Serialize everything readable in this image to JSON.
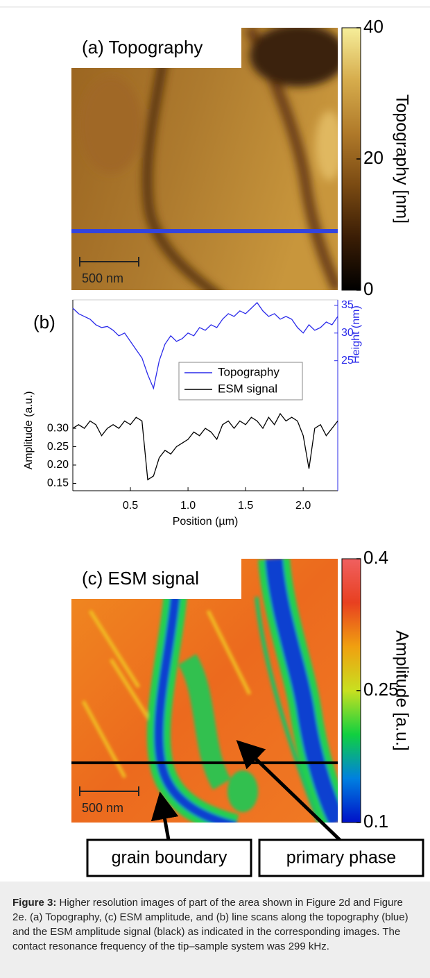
{
  "chart_data": [
    {
      "type": "image",
      "panel_label": "(a) Topography",
      "scale_bar": "500 nm",
      "colorbar": {
        "label": "Topography [nm]",
        "colormap": [
          "#000000",
          "#3a1d05",
          "#7a4a12",
          "#b07a2a",
          "#d6ac4c",
          "#f6ee9a"
        ],
        "clim": [
          0,
          40
        ],
        "ticks": [
          0,
          20,
          40
        ]
      }
    },
    {
      "type": "line",
      "panel_label": "(b)",
      "x": [
        0,
        0.05,
        0.1,
        0.15,
        0.2,
        0.25,
        0.3,
        0.35,
        0.4,
        0.45,
        0.5,
        0.55,
        0.6,
        0.65,
        0.7,
        0.75,
        0.8,
        0.85,
        0.9,
        0.95,
        1.0,
        1.05,
        1.1,
        1.15,
        1.2,
        1.25,
        1.3,
        1.35,
        1.4,
        1.45,
        1.5,
        1.55,
        1.6,
        1.65,
        1.7,
        1.75,
        1.8,
        1.85,
        1.9,
        1.95,
        2.0,
        2.05,
        2.1,
        2.15,
        2.2,
        2.25,
        2.3
      ],
      "xlim": [
        0,
        2.3
      ],
      "xticks": [
        0.5,
        {
          "value": 1,
          "label": "1.0"
        },
        1.5,
        {
          "value": 2,
          "label": "2.0"
        }
      ],
      "xlabel": "Position (µm)",
      "ylabel": "Amplitude (a.u.)",
      "y2label": "Height (nm)",
      "ylim": [
        0.13,
        0.65
      ],
      "yticks": [
        0.15,
        {
          "value": 0.2,
          "label": "0.20"
        },
        0.25,
        {
          "value": 0.3,
          "label": "0.30"
        }
      ],
      "y2lim": [
        1.5,
        36
      ],
      "y2ticks": [
        25,
        30,
        35
      ],
      "legend": "center",
      "series": [
        {
          "name": "Topography",
          "color": "#2b2bea",
          "axis": "y2",
          "values": [
            34.5,
            33.5,
            33.0,
            32.5,
            31.5,
            31.0,
            31.2,
            30.5,
            29.5,
            30.0,
            28.5,
            27.0,
            25.5,
            22.5,
            20.0,
            25.0,
            28.0,
            29.5,
            28.5,
            29.0,
            30.0,
            29.5,
            31.0,
            30.5,
            31.5,
            31.0,
            32.5,
            33.5,
            33.0,
            34.0,
            33.5,
            34.5,
            35.5,
            34.0,
            33.0,
            33.5,
            32.5,
            33.0,
            32.5,
            31.0,
            30.0,
            31.5,
            30.5,
            31.0,
            32.0,
            31.5,
            33.0
          ]
        },
        {
          "name": "ESM signal",
          "color": "#000000",
          "values": [
            0.3,
            0.31,
            0.3,
            0.32,
            0.31,
            0.28,
            0.3,
            0.31,
            0.3,
            0.32,
            0.31,
            0.33,
            0.32,
            0.16,
            0.17,
            0.22,
            0.24,
            0.23,
            0.25,
            0.26,
            0.27,
            0.29,
            0.28,
            0.3,
            0.29,
            0.27,
            0.31,
            0.32,
            0.3,
            0.32,
            0.31,
            0.33,
            0.32,
            0.3,
            0.33,
            0.31,
            0.34,
            0.32,
            0.33,
            0.32,
            0.28,
            0.19,
            0.3,
            0.31,
            0.28,
            0.3,
            0.32
          ]
        }
      ]
    },
    {
      "type": "image",
      "panel_label": "(c) ESM signal",
      "scale_bar": "500 nm",
      "annotations": [
        "grain boundary",
        "primary phase"
      ],
      "colorbar": {
        "label": "Amplitude [a.u.]",
        "colormap": [
          "#0010c8",
          "#0080e0",
          "#10d040",
          "#c8e020",
          "#f0a010",
          "#e84020",
          "#f06060"
        ],
        "clim": [
          0.1,
          0.4
        ],
        "ticks": [
          0.1,
          0.25,
          0.4
        ]
      }
    }
  ],
  "caption": {
    "label": "Figure 3:",
    "text": "Higher resolution images of part of the area shown in Figure 2d and Figure 2e. (a) Topography, (c) ESM amplitude, and (b) line scans along the topography (blue) and the ESM amplitude signal (black) as indicated in the corresponding images. The contact resonance frequency of the tip–sample system was 299 kHz."
  }
}
